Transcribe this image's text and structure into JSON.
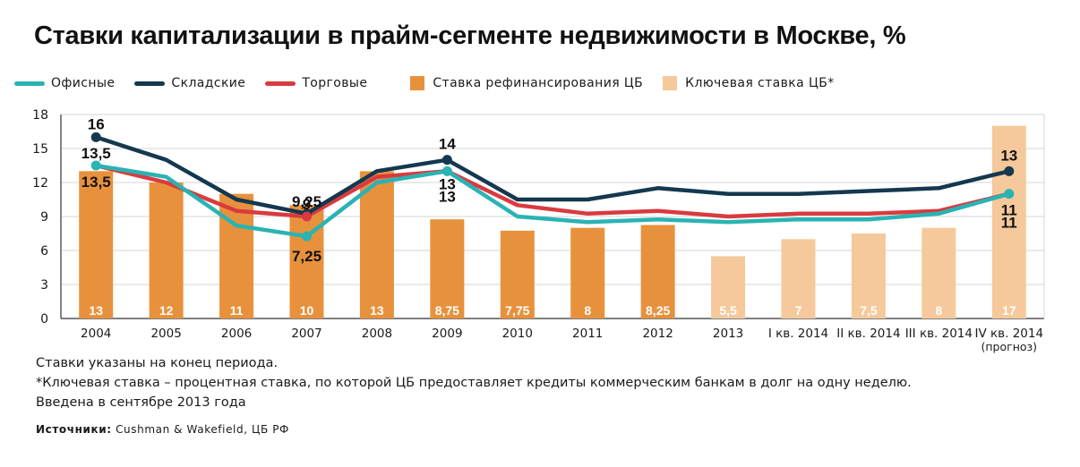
{
  "title": "Ставки капитализации в прайм-сегменте недвижимости в Москве, %",
  "legend": {
    "office": "Офисные",
    "warehouse": "Складские",
    "retail": "Торговые",
    "refi": "Ставка рефинансирования ЦБ",
    "key": "Ключевая ставка ЦБ*"
  },
  "colors": {
    "office": "#2ab3b3",
    "warehouse": "#14384f",
    "retail": "#d93a3f",
    "refi": "#e8913c",
    "key": "#f5c99b",
    "grid": "#d6d6d6"
  },
  "chart_data": {
    "type": "bar+line",
    "categories": [
      "2004",
      "2005",
      "2006",
      "2007",
      "2008",
      "2009",
      "2010",
      "2011",
      "2012",
      "2013",
      "I кв. 2014",
      "II кв. 2014",
      "III кв. 2014",
      "IV кв. 2014\n(прогноз)"
    ],
    "ylim": [
      0,
      18
    ],
    "yticks": [
      0,
      3,
      6,
      9,
      12,
      15,
      18
    ],
    "grid": true,
    "bars": [
      {
        "name": "Ставка рефинансирования ЦБ",
        "values": [
          13,
          12,
          11,
          10,
          13,
          8.75,
          7.75,
          8,
          8.25,
          null,
          null,
          null,
          null,
          null
        ],
        "labels": [
          "13",
          "12",
          "11",
          "10",
          "13",
          "8,75",
          "7,75",
          "8",
          "8,25",
          "",
          "",
          "",
          "",
          ""
        ]
      },
      {
        "name": "Ключевая ставка ЦБ*",
        "values": [
          null,
          null,
          null,
          null,
          null,
          null,
          null,
          null,
          null,
          5.5,
          7,
          7.5,
          8,
          17
        ],
        "labels": [
          "",
          "",
          "",
          "",
          "",
          "",
          "",
          "",
          "",
          "5,5",
          "7",
          "7,5",
          "8",
          "17"
        ]
      }
    ],
    "series": [
      {
        "name": "Офисные",
        "values": [
          13.5,
          12.5,
          8.2,
          7.25,
          12,
          13,
          9,
          8.5,
          8.75,
          8.5,
          8.75,
          8.75,
          9.25,
          11
        ]
      },
      {
        "name": "Складские",
        "values": [
          16,
          14,
          10.5,
          9.25,
          13,
          14,
          10.5,
          10.5,
          11.5,
          11,
          11,
          11.25,
          11.5,
          13
        ]
      },
      {
        "name": "Торговые",
        "values": [
          13.5,
          12,
          9.5,
          9,
          12.5,
          13,
          10,
          9.25,
          9.5,
          9,
          9.25,
          9.25,
          9.5,
          11
        ]
      }
    ],
    "annotations": [
      {
        "text": "16",
        "x": "2004",
        "y": 16
      },
      {
        "text": "13,5",
        "x": "2004",
        "y": 13.5
      },
      {
        "text": "13,5",
        "x": "2004",
        "y": 13.5
      },
      {
        "text": "9,25",
        "x": "2007",
        "y": 9.25
      },
      {
        "text": "9",
        "x": "2007",
        "y": 9
      },
      {
        "text": "7,25",
        "x": "2007",
        "y": 7.25
      },
      {
        "text": "14",
        "x": "2009",
        "y": 14
      },
      {
        "text": "13",
        "x": "2009",
        "y": 13
      },
      {
        "text": "13",
        "x": "2009",
        "y": 13
      },
      {
        "text": "13",
        "x": "IV кв. 2014\n(прогноз)",
        "y": 13
      },
      {
        "text": "11",
        "x": "IV кв. 2014\n(прогноз)",
        "y": 11
      },
      {
        "text": "11",
        "x": "IV кв. 2014\n(прогноз)",
        "y": 11
      }
    ]
  },
  "notes": [
    "Ставки указаны на конец периода.",
    "*Ключевая ставка – процентная ставка, по которой ЦБ предоставляет кредиты коммерческим банкам в долг на одну неделю.",
    "Введена в сентябре 2013 года"
  ],
  "source": {
    "label": "Источники:",
    "text": "Cushman & Wakefield, ЦБ РФ"
  }
}
